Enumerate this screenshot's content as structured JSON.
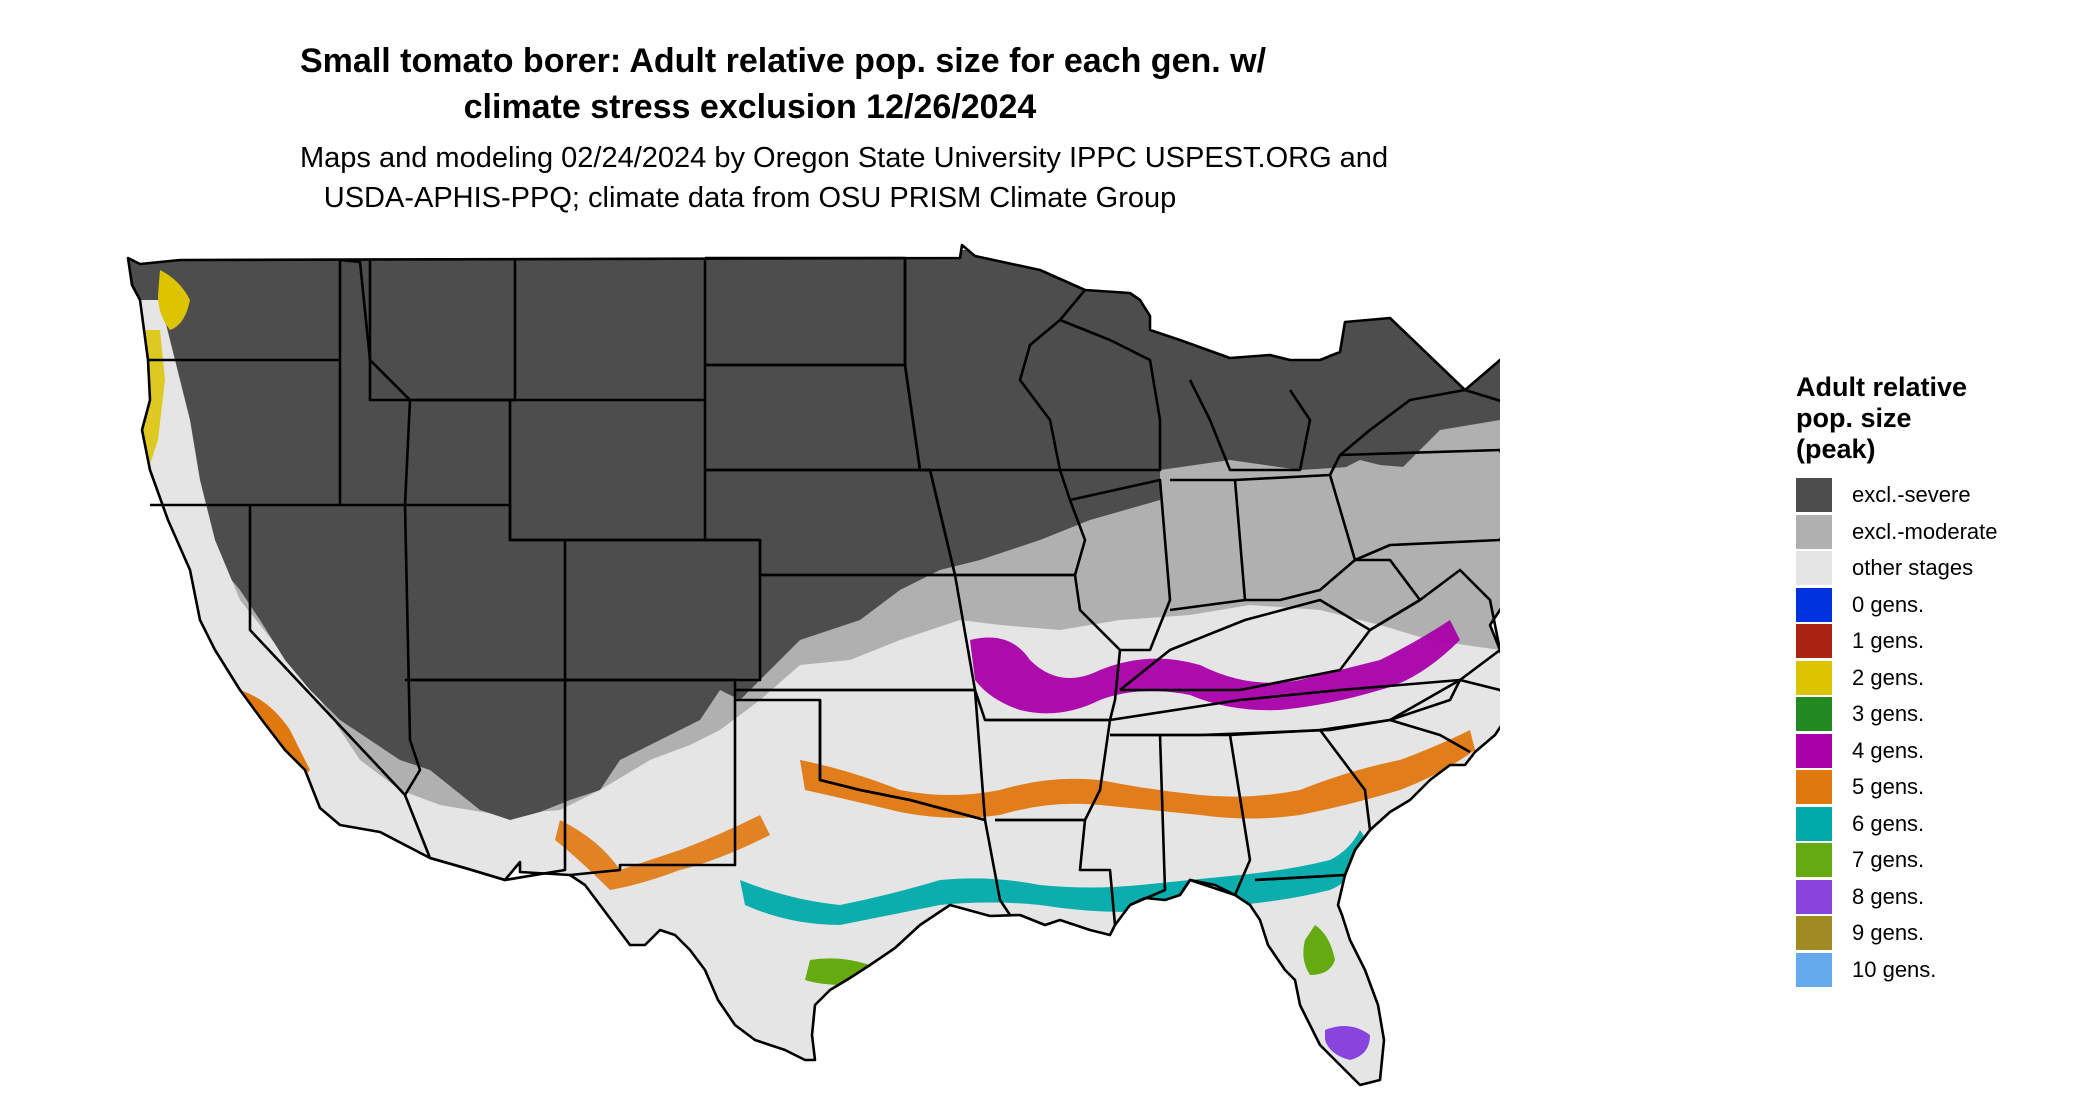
{
  "title": {
    "line1": "Small tomato borer: Adult relative pop. size for each gen. w/",
    "line2": "climate stress exclusion 12/26/2024"
  },
  "subtitle": {
    "line1": "Maps and modeling 02/24/2024 by Oregon State University IPPC USPEST.ORG and",
    "line2": "USDA-APHIS-PPQ; climate data from OSU PRISM Climate Group"
  },
  "legend": {
    "title_line1": "Adult relative",
    "title_line2": "pop. size",
    "title_line3": "(peak)",
    "items": [
      {
        "label": "excl.-severe",
        "color": "#4d4d4d"
      },
      {
        "label": "excl.-moderate",
        "color": "#b0b0b0"
      },
      {
        "label": "other stages",
        "color": "#e5e5e5"
      },
      {
        "label": "0 gens.",
        "color": "#0033dd"
      },
      {
        "label": "1 gens.",
        "color": "#aa2211"
      },
      {
        "label": "2 gens.",
        "color": "#ddc400"
      },
      {
        "label": "3 gens.",
        "color": "#228822"
      },
      {
        "label": "4 gens.",
        "color": "#aa00aa"
      },
      {
        "label": "5 gens.",
        "color": "#e07810"
      },
      {
        "label": "6 gens.",
        "color": "#00aaaa"
      },
      {
        "label": "7 gens.",
        "color": "#66aa11"
      },
      {
        "label": "8 gens.",
        "color": "#8844dd"
      },
      {
        "label": "9 gens.",
        "color": "#a08a22"
      },
      {
        "label": "10 gens.",
        "color": "#66aaee"
      }
    ]
  },
  "map": {
    "region": "Contiguous United States",
    "colors": {
      "excl_severe": "#4d4d4d",
      "excl_moderate": "#b0b0b0",
      "other_stages": "#e5e5e5",
      "gen4": "#aa00aa",
      "gen5": "#e07810",
      "gen6": "#00aaaa",
      "gen7": "#66aa11",
      "gen8": "#8844dd",
      "gen2": "#ddc400",
      "gen3": "#228822",
      "boundary": "#000000"
    }
  }
}
